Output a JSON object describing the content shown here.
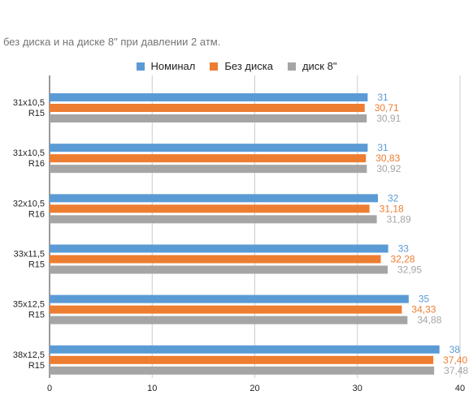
{
  "chart_data": {
    "type": "bar",
    "orientation": "horizontal",
    "title": "без диска и на диске 8\" при давлении 2 атм.",
    "categories": [
      [
        "31x10,5",
        "R15"
      ],
      [
        "31x10,5",
        "R16"
      ],
      [
        "32x10,5",
        "R16"
      ],
      [
        "33x11,5",
        "R15"
      ],
      [
        "35x12,5",
        "R15"
      ],
      [
        "38x12,5",
        "R15"
      ]
    ],
    "series": [
      {
        "name": "Номинал",
        "color": "#5b9bd5",
        "values": [
          31,
          31,
          32,
          33,
          35,
          38
        ],
        "labels": [
          "31",
          "31",
          "32",
          "33",
          "35",
          "38"
        ]
      },
      {
        "name": "Без диска",
        "color": "#ed7d31",
        "values": [
          30.71,
          30.83,
          31.18,
          32.28,
          34.33,
          37.4
        ],
        "labels": [
          "30,71",
          "30,83",
          "31,18",
          "32,28",
          "34,33",
          "37,40"
        ]
      },
      {
        "name": "диск 8\"",
        "color": "#a5a5a5",
        "values": [
          30.91,
          30.92,
          31.89,
          32.95,
          34.88,
          37.48
        ],
        "labels": [
          "30,91",
          "30,92",
          "31,89",
          "32,95",
          "34,88",
          "37,48"
        ]
      }
    ],
    "xlim": [
      0,
      40
    ],
    "xticks": [
      0,
      10,
      20,
      30,
      40
    ],
    "xtick_labels": [
      "0",
      "10",
      "20",
      "30",
      "40"
    ],
    "grid": "vertical",
    "legend_position": "top"
  }
}
